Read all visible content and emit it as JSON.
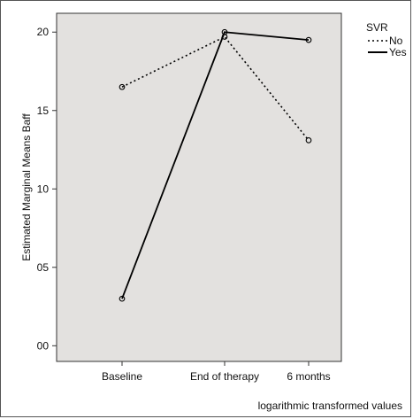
{
  "chart_data": {
    "type": "line",
    "ylabel": "Estimated Marginal Means Baff",
    "xlabel": "logarithmic transformed values",
    "categories": [
      "Baseline",
      "End of therapy",
      "6 months"
    ],
    "y_tick_labels": [
      "00",
      "05",
      "10",
      "15",
      "20"
    ],
    "y_tick_values": [
      0,
      5,
      10,
      15,
      20
    ],
    "ylim": [
      -1,
      21.2
    ],
    "grid": false,
    "background": "#e3e1df",
    "legend": {
      "title": "SVR",
      "placement": "right-top"
    },
    "series": [
      {
        "name": "No",
        "values": [
          16.5,
          19.7,
          13.1
        ],
        "dash": "dotted",
        "color": "#000000"
      },
      {
        "name": "Yes",
        "values": [
          3.0,
          20.0,
          19.5
        ],
        "dash": "solid",
        "color": "#000000"
      }
    ]
  }
}
